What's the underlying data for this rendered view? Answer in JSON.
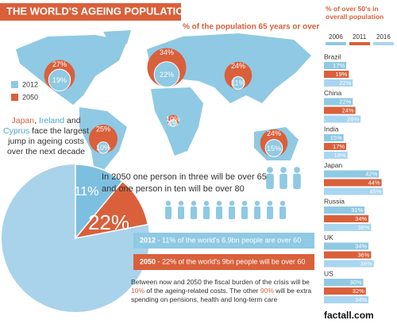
{
  "header": {
    "title": "THE WORLD'S AGEING POPULATION",
    "subtitle": "% of the population 65 years or over"
  },
  "map": {
    "series": [
      {
        "name": "2012",
        "color": "#8fc9e3",
        "values": [
          19,
          22,
          11,
          6,
          10,
          15
        ],
        "value_labels": [
          "19%",
          "22%",
          "11%",
          "6%",
          "10%",
          "15%"
        ]
      },
      {
        "name": "2050",
        "color": "#d9603b",
        "values": [
          27,
          34,
          24,
          10,
          25,
          24
        ],
        "value_labels": [
          "27%",
          "34%",
          "24%",
          "10%",
          "25%",
          "24%"
        ]
      }
    ]
  },
  "callout": {
    "parts": [
      "Japan",
      ", ",
      "Ireland",
      " and ",
      "Cyprus",
      " face the largest jump in ageing costs over the next decade"
    ]
  },
  "over50": {
    "title": "% of over 50's in overall population",
    "categories": [
      "Brazil",
      "China",
      "India",
      "Japan",
      "Russia",
      "UK",
      "US"
    ],
    "series": [
      {
        "name": "2006",
        "color": "#8fc9e3",
        "values": [
          17,
          22,
          15,
          42,
          31,
          34,
          30
        ],
        "value_labels": [
          "17%",
          "22%",
          "15%",
          "42%",
          "31%",
          "34%",
          "30%"
        ]
      },
      {
        "name": "2011",
        "color": "#d9603b",
        "values": [
          19,
          24,
          17,
          44,
          34,
          36,
          32
        ],
        "value_labels": [
          "19%",
          "24%",
          "17%",
          "44%",
          "34%",
          "36%",
          "32%"
        ]
      },
      {
        "name": "2016",
        "color": "#a8d5f0",
        "values": [
          22,
          28,
          18,
          45,
          36,
          38,
          34
        ],
        "value_labels": [
          "22%",
          "28%",
          "18%",
          "45%",
          "36%",
          "38%",
          "34%"
        ]
      }
    ]
  },
  "projection": "In 2050 one person in three will be over 65 and one person in ten will be over 80",
  "pie": {
    "values": [
      11,
      22
    ],
    "value_labels": [
      "11%",
      "22%"
    ],
    "colors": [
      "#7dbfe0",
      "#d9603b"
    ]
  },
  "facts": [
    {
      "year": "2012",
      "text": " - 11% of the world's 6.9bn people are over 60"
    },
    {
      "year": "2050",
      "text": " - 22% of the world's 9bn people will be over 60"
    }
  ],
  "burden": {
    "parts": [
      "Between now and 2050 the fiscal burden of the crisis will be ",
      "10%",
      " of the ageing-related costs. The other ",
      "90%",
      " will be extra  spending on pensions, health and long-term care"
    ]
  },
  "footer": "factall.com"
}
